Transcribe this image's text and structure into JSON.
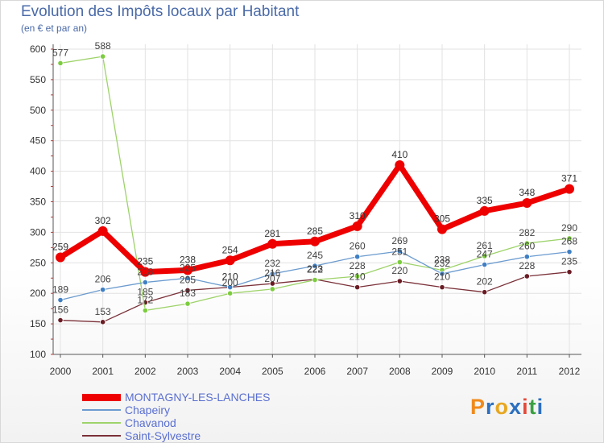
{
  "title": "Evolution des Impôts locaux par Habitant",
  "subtitle": "(en € et par an)",
  "brand": {
    "letters": [
      "P",
      "r",
      "o",
      "x",
      "i",
      "t",
      "i"
    ],
    "colors": [
      "#f08a1c",
      "#2b6fc0",
      "#e7a720",
      "#2b6fc0",
      "#e34a3a",
      "#3aa041",
      "#2b6fc0"
    ]
  },
  "chart_data": {
    "type": "line",
    "title": "Evolution des Impôts locaux par Habitant",
    "subtitle": "(en € et par an)",
    "xlabel": "",
    "ylabel": "",
    "x": [
      "2000",
      "2001",
      "2002",
      "2003",
      "2004",
      "2005",
      "2006",
      "2007",
      "2008",
      "2009",
      "2010",
      "2011",
      "2012"
    ],
    "ylim": [
      100,
      600
    ],
    "yticks": [
      "100",
      "150",
      "200",
      "250",
      "300",
      "350",
      "400",
      "450",
      "500",
      "550",
      "600"
    ],
    "grid": true,
    "legend_position": "bottom-left",
    "series": [
      {
        "name": "MONTAGNY-LES-LANCHES",
        "color": "#ee0000",
        "marker": "#ee0000",
        "width": 7,
        "values": [
          259,
          302,
          235,
          238,
          254,
          281,
          285,
          310,
          410,
          305,
          335,
          348,
          371
        ],
        "labels": [
          "259",
          "302",
          "235",
          "238",
          "254",
          "281",
          "285",
          "310",
          "410",
          "305",
          "335",
          "348",
          "371"
        ]
      },
      {
        "name": "Chapeiry",
        "color": "#6b9bcf",
        "marker": "#3f7fc4",
        "width": 1.3,
        "values": [
          189,
          206,
          218,
          225,
          210,
          232,
          245,
          260,
          269,
          232,
          247,
          260,
          268
        ],
        "labels": [
          "189",
          "206",
          "218",
          "225",
          "210",
          "232",
          "245",
          "260",
          "269",
          "232",
          "247",
          "260",
          "268"
        ]
      },
      {
        "name": "Chavanod",
        "color": "#9ed36a",
        "marker": "#7ccc3e",
        "width": 1.3,
        "values": [
          577,
          588,
          172,
          183,
          200,
          207,
          222,
          228,
          251,
          238,
          261,
          282,
          290
        ],
        "labels": [
          "577",
          "588",
          "172",
          "183",
          "200",
          "207",
          "222",
          "228",
          "251",
          "238",
          "261",
          "282",
          "290"
        ]
      },
      {
        "name": "Saint-Sylvestre",
        "color": "#7a3038",
        "marker": "#6a1c24",
        "width": 1.3,
        "values": [
          156,
          153,
          185,
          205,
          210,
          216,
          223,
          210,
          220,
          210,
          202,
          228,
          235
        ],
        "labels": [
          "156",
          "153",
          "185",
          "205",
          "210",
          "216",
          "223",
          "210",
          "220",
          "210",
          "202",
          "228",
          "235"
        ]
      }
    ]
  }
}
